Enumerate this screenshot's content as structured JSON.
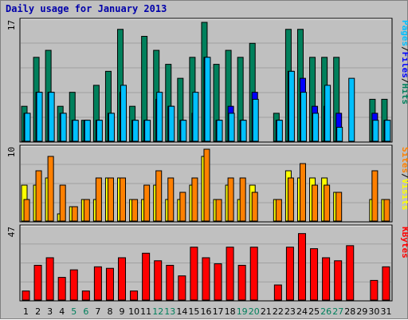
{
  "title": "Daily usage for January 2013",
  "colors": {
    "background": "#c0c0c0",
    "panel": "#c0c0c0",
    "grid": "#a0a0a0",
    "hits": "#00805c",
    "files": "#0000ff",
    "pages": "#00c0ff",
    "visits": "#ffff00",
    "sites": "#ff8000",
    "kbytes": "#ff0000",
    "weekend_label": "#00805c",
    "weekday_label": "#000000",
    "title": "#0000aa"
  },
  "chart_data": [
    {
      "type": "bar",
      "name": "pages-files-hits",
      "ymax_label": "17",
      "ylim": [
        0,
        17
      ],
      "legend": [
        "Pages",
        "/",
        "Files",
        "/",
        "Hits"
      ],
      "categories": [
        "1",
        "2",
        "3",
        "4",
        "5",
        "6",
        "7",
        "8",
        "9",
        "10",
        "11",
        "12",
        "13",
        "14",
        "15",
        "16",
        "17",
        "18",
        "19",
        "20",
        "21",
        "22",
        "23",
        "24",
        "25",
        "26",
        "27",
        "28",
        "29",
        "30",
        "31"
      ],
      "series": [
        {
          "name": "Hits",
          "values": [
            5,
            12,
            13,
            5,
            7,
            3,
            8,
            10,
            16,
            5,
            15,
            13,
            11,
            9,
            12,
            17,
            11,
            13,
            12,
            14,
            0,
            4,
            16,
            16,
            12,
            12,
            12,
            0,
            0,
            6,
            6
          ]
        },
        {
          "name": "Files",
          "values": [
            4,
            7,
            7,
            4,
            3,
            3,
            3,
            4,
            7,
            3,
            3,
            6,
            5,
            3,
            4,
            12,
            3,
            5,
            3,
            7,
            0,
            3,
            10,
            9,
            5,
            5,
            4,
            0,
            0,
            4,
            3
          ]
        },
        {
          "name": "Pages",
          "values": [
            4,
            7,
            7,
            4,
            3,
            3,
            3,
            4,
            8,
            3,
            3,
            7,
            5,
            3,
            7,
            12,
            3,
            4,
            3,
            6,
            0,
            3,
            10,
            7,
            4,
            8,
            2,
            9,
            0,
            3,
            3
          ]
        }
      ]
    },
    {
      "type": "bar",
      "name": "sites-visits",
      "ymax_label": "10",
      "ylim": [
        0,
        10
      ],
      "legend": [
        "Sites",
        "/",
        "Visits"
      ],
      "categories": [
        "1",
        "2",
        "3",
        "4",
        "5",
        "6",
        "7",
        "8",
        "9",
        "10",
        "11",
        "12",
        "13",
        "14",
        "15",
        "16",
        "17",
        "18",
        "19",
        "20",
        "21",
        "22",
        "23",
        "24",
        "25",
        "26",
        "27",
        "28",
        "29",
        "30",
        "31"
      ],
      "series": [
        {
          "name": "Visits",
          "values": [
            5,
            5,
            6,
            1,
            2,
            3,
            3,
            6,
            6,
            3,
            3,
            5,
            3,
            3,
            5,
            9,
            3,
            5,
            3,
            5,
            0,
            3,
            7,
            6,
            6,
            6,
            4,
            0,
            0,
            3,
            3
          ]
        },
        {
          "name": "Sites",
          "values": [
            3,
            7,
            9,
            5,
            2,
            3,
            6,
            6,
            6,
            3,
            5,
            7,
            6,
            4,
            6,
            10,
            3,
            6,
            6,
            4,
            0,
            3,
            6,
            8,
            5,
            5,
            4,
            0,
            0,
            7,
            3
          ]
        }
      ]
    },
    {
      "type": "bar",
      "name": "kbytes",
      "ymax_label": "47",
      "ylim": [
        0,
        47
      ],
      "legend": [
        "KBytes"
      ],
      "categories": [
        "1",
        "2",
        "3",
        "4",
        "5",
        "6",
        "7",
        "8",
        "9",
        "10",
        "11",
        "12",
        "13",
        "14",
        "15",
        "16",
        "17",
        "18",
        "19",
        "20",
        "21",
        "22",
        "23",
        "24",
        "25",
        "26",
        "27",
        "28",
        "29",
        "30",
        "31"
      ],
      "series": [
        {
          "name": "KBytes",
          "values": [
            6,
            23,
            28,
            15,
            20,
            6,
            22,
            21,
            28,
            6,
            31,
            26,
            23,
            16,
            35,
            28,
            24,
            35,
            23,
            35,
            0,
            10,
            35,
            44,
            34,
            28,
            26,
            36,
            0,
            13,
            22
          ]
        }
      ]
    }
  ],
  "day_labels": [
    "1",
    "2",
    "3",
    "4",
    "5",
    "6",
    "7",
    "8",
    "9",
    "10",
    "11",
    "12",
    "13",
    "14",
    "15",
    "16",
    "17",
    "18",
    "19",
    "20",
    "21",
    "22",
    "23",
    "24",
    "25",
    "26",
    "27",
    "28",
    "29",
    "30",
    "31"
  ],
  "weekend_days": [
    5,
    6,
    12,
    13,
    19,
    20,
    26,
    27
  ]
}
